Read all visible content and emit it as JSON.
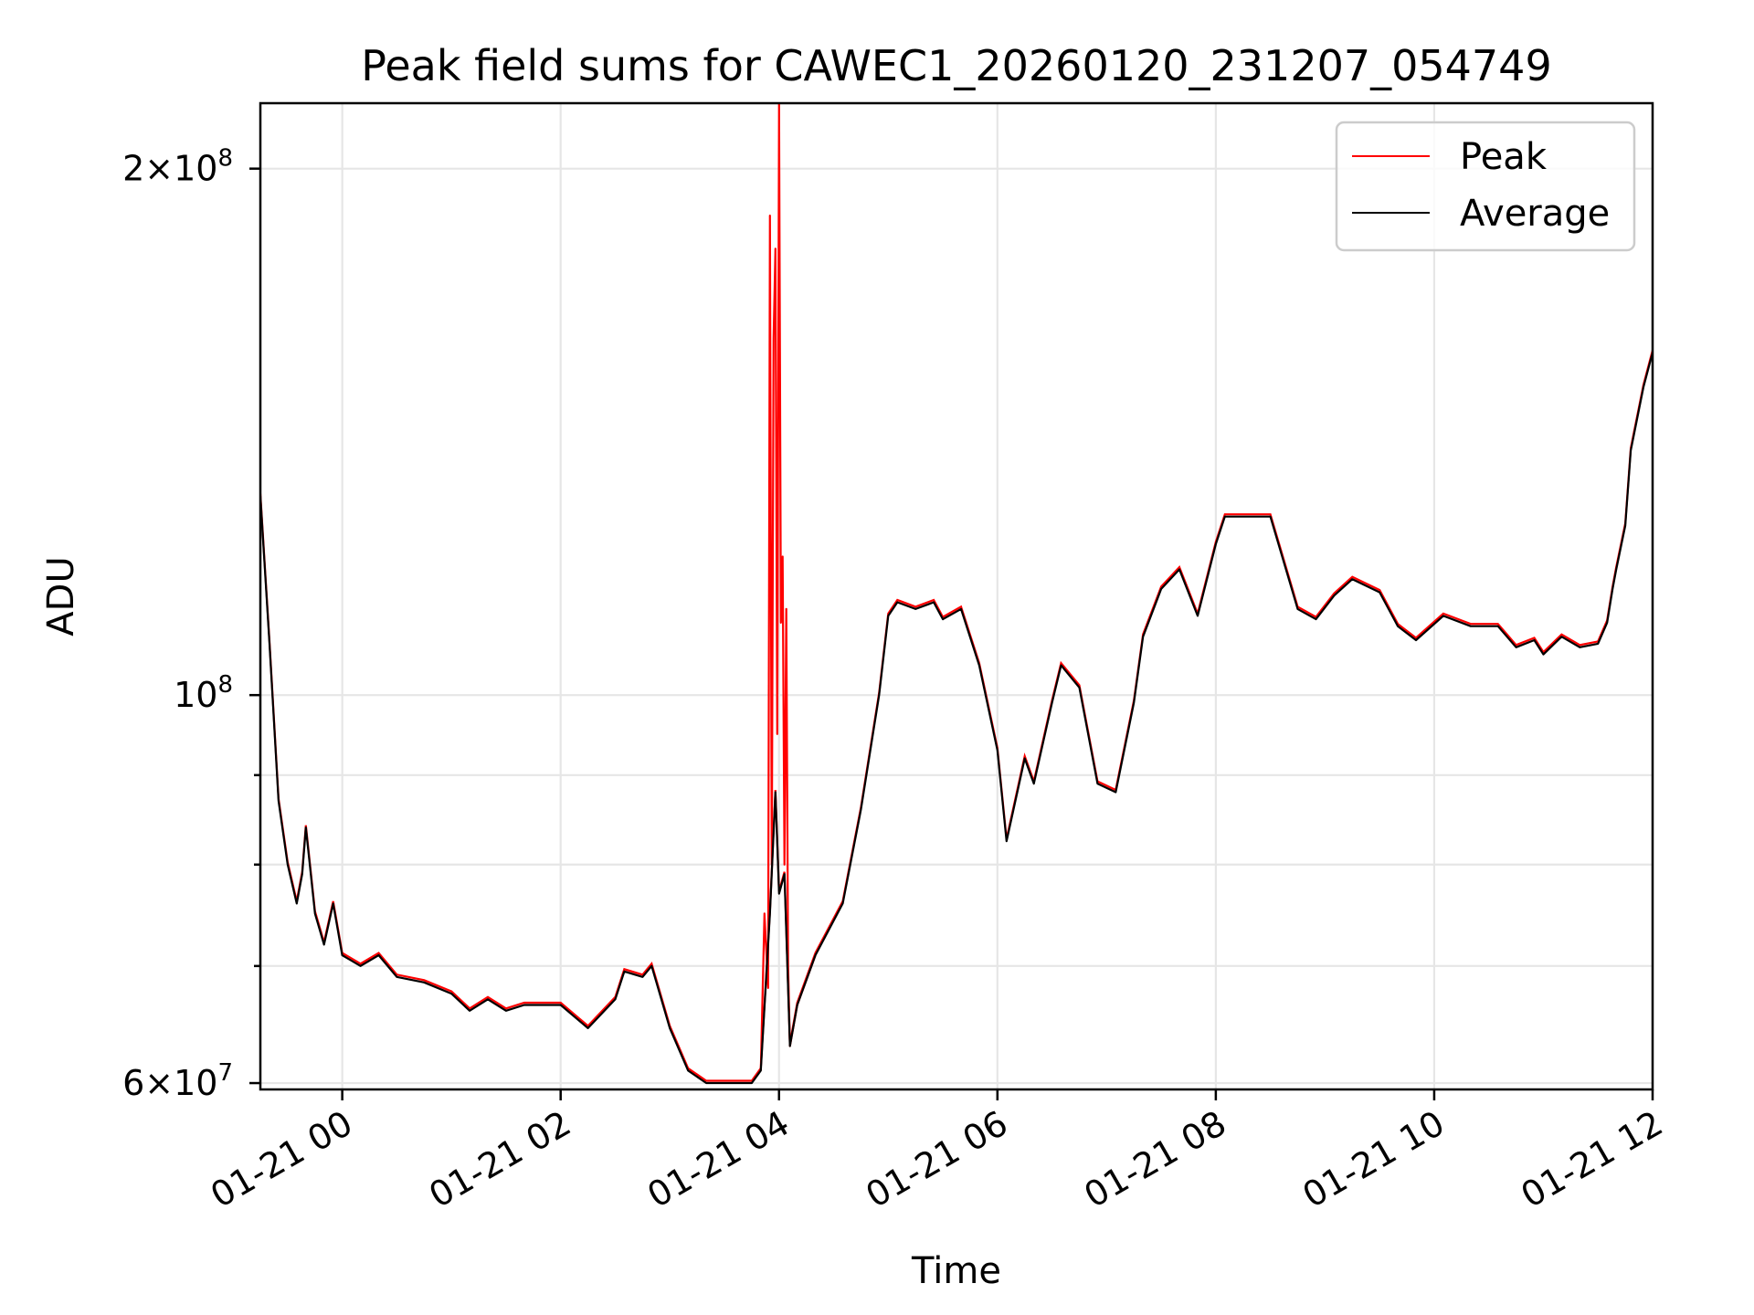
{
  "chart_data": {
    "type": "line",
    "title": "Peak field sums for CAWEC1_20260120_231207_054749",
    "xlabel": "Time",
    "ylabel": "ADU",
    "x_axis": {
      "kind": "time",
      "range": [
        "2026-01-20 23:15",
        "2026-01-21 12:00"
      ],
      "ticks": [
        {
          "value": "2026-01-21 00:00",
          "label": "01-21 00"
        },
        {
          "value": "2026-01-21 02:00",
          "label": "01-21 02"
        },
        {
          "value": "2026-01-21 04:00",
          "label": "01-21 04"
        },
        {
          "value": "2026-01-21 06:00",
          "label": "01-21 06"
        },
        {
          "value": "2026-01-21 08:00",
          "label": "01-21 08"
        },
        {
          "value": "2026-01-21 10:00",
          "label": "01-21 10"
        },
        {
          "value": "2026-01-21 12:00",
          "label": "01-21 12"
        }
      ]
    },
    "y_axis": {
      "scale": "log",
      "range": [
        59500000,
        218000000
      ],
      "major_ticks": [
        {
          "value": 60000000,
          "base": "6×10",
          "exp": "7"
        },
        {
          "value": 100000000,
          "base": "10",
          "exp": "8"
        },
        {
          "value": 200000000,
          "base": "2×10",
          "exp": "8"
        }
      ],
      "minor_ticks": [
        70000000,
        80000000,
        90000000
      ]
    },
    "grid": true,
    "legend": {
      "position": "top-right",
      "entries": [
        {
          "label": "Peak",
          "color": "#ff0000"
        },
        {
          "label": "Average",
          "color": "#000000"
        }
      ]
    },
    "series": [
      {
        "name": "Average",
        "color": "#000000",
        "points": [
          [
            "2026-01-20 23:15",
            130000000
          ],
          [
            "2026-01-20 23:20",
            107000000
          ],
          [
            "2026-01-20 23:25",
            87000000
          ],
          [
            "2026-01-20 23:30",
            80000000
          ],
          [
            "2026-01-20 23:35",
            76000000
          ],
          [
            "2026-01-20 23:38",
            79000000
          ],
          [
            "2026-01-20 23:40",
            84000000
          ],
          [
            "2026-01-20 23:45",
            75000000
          ],
          [
            "2026-01-20 23:50",
            72000000
          ],
          [
            "2026-01-20 23:55",
            76000000
          ],
          [
            "2026-01-21 00:00",
            71000000
          ],
          [
            "2026-01-21 00:10",
            70000000
          ],
          [
            "2026-01-21 00:20",
            71000000
          ],
          [
            "2026-01-21 00:30",
            69000000
          ],
          [
            "2026-01-21 00:45",
            68500000
          ],
          [
            "2026-01-21 01:00",
            67500000
          ],
          [
            "2026-01-21 01:10",
            66000000
          ],
          [
            "2026-01-21 01:20",
            67000000
          ],
          [
            "2026-01-21 01:30",
            66000000
          ],
          [
            "2026-01-21 01:40",
            66500000
          ],
          [
            "2026-01-21 02:00",
            66500000
          ],
          [
            "2026-01-21 02:15",
            64500000
          ],
          [
            "2026-01-21 02:30",
            67000000
          ],
          [
            "2026-01-21 02:35",
            69500000
          ],
          [
            "2026-01-21 02:45",
            69000000
          ],
          [
            "2026-01-21 02:50",
            70000000
          ],
          [
            "2026-01-21 03:00",
            64500000
          ],
          [
            "2026-01-21 03:10",
            61000000
          ],
          [
            "2026-01-21 03:20",
            60000000
          ],
          [
            "2026-01-21 03:45",
            60000000
          ],
          [
            "2026-01-21 03:50",
            61000000
          ],
          [
            "2026-01-21 03:55",
            75000000
          ],
          [
            "2026-01-21 03:58",
            88000000
          ],
          [
            "2026-01-21 04:00",
            77000000
          ],
          [
            "2026-01-21 04:03",
            79000000
          ],
          [
            "2026-01-21 04:06",
            63000000
          ],
          [
            "2026-01-21 04:10",
            66500000
          ],
          [
            "2026-01-21 04:20",
            71000000
          ],
          [
            "2026-01-21 04:35",
            76000000
          ],
          [
            "2026-01-21 04:45",
            86000000
          ],
          [
            "2026-01-21 04:55",
            100000000
          ],
          [
            "2026-01-21 05:00",
            111000000
          ],
          [
            "2026-01-21 05:05",
            113000000
          ],
          [
            "2026-01-21 05:15",
            112000000
          ],
          [
            "2026-01-21 05:25",
            113000000
          ],
          [
            "2026-01-21 05:30",
            110500000
          ],
          [
            "2026-01-21 05:40",
            112000000
          ],
          [
            "2026-01-21 05:50",
            104000000
          ],
          [
            "2026-01-21 06:00",
            93000000
          ],
          [
            "2026-01-21 06:05",
            82500000
          ],
          [
            "2026-01-21 06:15",
            92000000
          ],
          [
            "2026-01-21 06:20",
            89000000
          ],
          [
            "2026-01-21 06:30",
            99000000
          ],
          [
            "2026-01-21 06:35",
            104000000
          ],
          [
            "2026-01-21 06:45",
            101000000
          ],
          [
            "2026-01-21 06:55",
            89000000
          ],
          [
            "2026-01-21 07:05",
            88000000
          ],
          [
            "2026-01-21 07:15",
            99000000
          ],
          [
            "2026-01-21 07:20",
            108000000
          ],
          [
            "2026-01-21 07:30",
            115000000
          ],
          [
            "2026-01-21 07:40",
            118000000
          ],
          [
            "2026-01-21 07:50",
            111000000
          ],
          [
            "2026-01-21 08:00",
            122000000
          ],
          [
            "2026-01-21 08:05",
            126500000
          ],
          [
            "2026-01-21 08:30",
            126500000
          ],
          [
            "2026-01-21 08:45",
            112000000
          ],
          [
            "2026-01-21 08:55",
            110500000
          ],
          [
            "2026-01-21 09:05",
            114000000
          ],
          [
            "2026-01-21 09:15",
            116500000
          ],
          [
            "2026-01-21 09:30",
            114500000
          ],
          [
            "2026-01-21 09:40",
            109500000
          ],
          [
            "2026-01-21 09:50",
            107500000
          ],
          [
            "2026-01-21 10:05",
            111000000
          ],
          [
            "2026-01-21 10:20",
            109500000
          ],
          [
            "2026-01-21 10:35",
            109500000
          ],
          [
            "2026-01-21 10:45",
            106500000
          ],
          [
            "2026-01-21 10:55",
            107500000
          ],
          [
            "2026-01-21 11:00",
            105500000
          ],
          [
            "2026-01-21 11:10",
            108000000
          ],
          [
            "2026-01-21 11:20",
            106500000
          ],
          [
            "2026-01-21 11:30",
            107000000
          ],
          [
            "2026-01-21 11:35",
            110000000
          ],
          [
            "2026-01-21 11:38",
            115000000
          ],
          [
            "2026-01-21 11:40",
            118000000
          ],
          [
            "2026-01-21 11:45",
            125000000
          ],
          [
            "2026-01-21 11:48",
            138000000
          ],
          [
            "2026-01-21 11:55",
            150000000
          ],
          [
            "2026-01-21 12:00",
            157000000
          ]
        ]
      },
      {
        "name": "Peak",
        "color": "#ff0000",
        "points": [
          [
            "2026-01-21 03:50",
            61000000
          ],
          [
            "2026-01-21 03:52",
            75000000
          ],
          [
            "2026-01-21 03:54",
            68000000
          ],
          [
            "2026-01-21 03:55",
            188000000
          ],
          [
            "2026-01-21 03:56",
            80000000
          ],
          [
            "2026-01-21 03:57",
            160000000
          ],
          [
            "2026-01-21 03:58",
            180000000
          ],
          [
            "2026-01-21 03:59",
            95000000
          ],
          [
            "2026-01-21 04:00",
            218000000
          ],
          [
            "2026-01-21 04:01",
            110000000
          ],
          [
            "2026-01-21 04:02",
            120000000
          ],
          [
            "2026-01-21 04:03",
            80000000
          ],
          [
            "2026-01-21 04:04",
            112000000
          ],
          [
            "2026-01-21 04:05",
            70000000
          ],
          [
            "2026-01-21 04:06",
            63000000
          ],
          [
            "2026-01-21 04:10",
            66500000
          ],
          [
            "2026-01-21 04:20",
            71000000
          ]
        ]
      }
    ]
  }
}
